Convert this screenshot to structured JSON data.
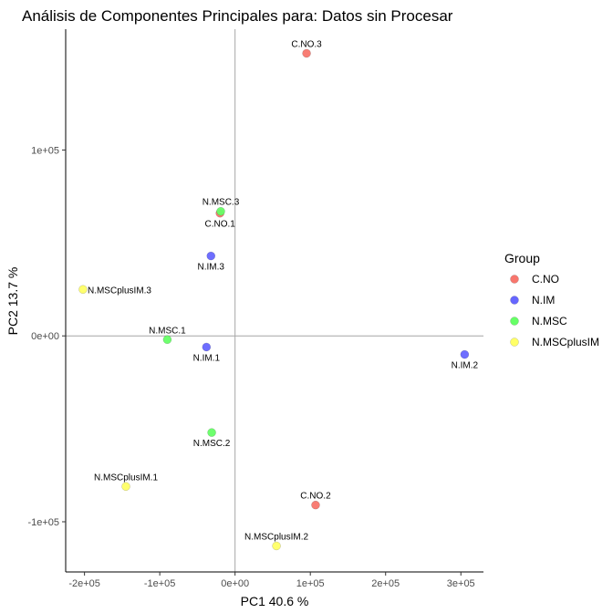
{
  "chart_data": {
    "type": "scatter",
    "title": "Análisis de Componentes Principales para: Datos sin Procesar",
    "xlabel": "PC1 40.6 %",
    "ylabel": "PC2 13.7 %",
    "xlim": [
      -225000,
      330000
    ],
    "ylim": [
      -127000,
      165000
    ],
    "x_ticks": [
      {
        "value": -200000,
        "label": "-2e+05"
      },
      {
        "value": -100000,
        "label": "-1e+05"
      },
      {
        "value": 0,
        "label": "0e+00"
      },
      {
        "value": 100000,
        "label": "1e+05"
      },
      {
        "value": 200000,
        "label": "2e+05"
      },
      {
        "value": 300000,
        "label": "3e+05"
      }
    ],
    "y_ticks": [
      {
        "value": -100000,
        "label": "-1e+05"
      },
      {
        "value": 0,
        "label": "0e+00"
      },
      {
        "value": 100000,
        "label": "1e+05"
      }
    ],
    "reference_lines": {
      "x": 0,
      "y": 0
    },
    "grid": false,
    "legend": {
      "title": "Group",
      "placement": "right",
      "entries": [
        {
          "name": "C.NO",
          "color": "#f8766d"
        },
        {
          "name": "N.IM",
          "color": "#6666ff"
        },
        {
          "name": "N.MSC",
          "color": "#66ff66"
        },
        {
          "name": "N.MSCplusIM",
          "color": "#ffff66"
        }
      ]
    },
    "points": [
      {
        "label": "C.NO.3",
        "group": "C.NO",
        "x": 95000,
        "y": 152000,
        "label_pos": "above"
      },
      {
        "label": "C.NO.1",
        "group": "C.NO",
        "x": -20000,
        "y": 66000,
        "label_pos": "below"
      },
      {
        "label": "C.NO.2",
        "group": "C.NO",
        "x": 107000,
        "y": -91000,
        "label_pos": "above"
      },
      {
        "label": "N.IM.3",
        "group": "N.IM",
        "x": -32000,
        "y": 43000,
        "label_pos": "below"
      },
      {
        "label": "N.IM.1",
        "group": "N.IM",
        "x": -38000,
        "y": -6000,
        "label_pos": "below"
      },
      {
        "label": "N.IM.2",
        "group": "N.IM",
        "x": 305000,
        "y": -10000,
        "label_pos": "below"
      },
      {
        "label": "N.MSC.3",
        "group": "N.MSC",
        "x": -19000,
        "y": 67000,
        "label_pos": "above"
      },
      {
        "label": "N.MSC.1",
        "group": "N.MSC",
        "x": -90000,
        "y": -2000,
        "label_pos": "above"
      },
      {
        "label": "N.MSC.2",
        "group": "N.MSC",
        "x": -31000,
        "y": -52000,
        "label_pos": "below"
      },
      {
        "label": "N.MSCplusIM.3",
        "group": "N.MSCplusIM",
        "x": -202000,
        "y": 25000,
        "label_pos": "right"
      },
      {
        "label": "N.MSCplusIM.1",
        "group": "N.MSCplusIM",
        "x": -145000,
        "y": -81000,
        "label_pos": "above"
      },
      {
        "label": "N.MSCplusIM.2",
        "group": "N.MSCplusIM",
        "x": 55000,
        "y": -113000,
        "label_pos": "above"
      }
    ]
  }
}
